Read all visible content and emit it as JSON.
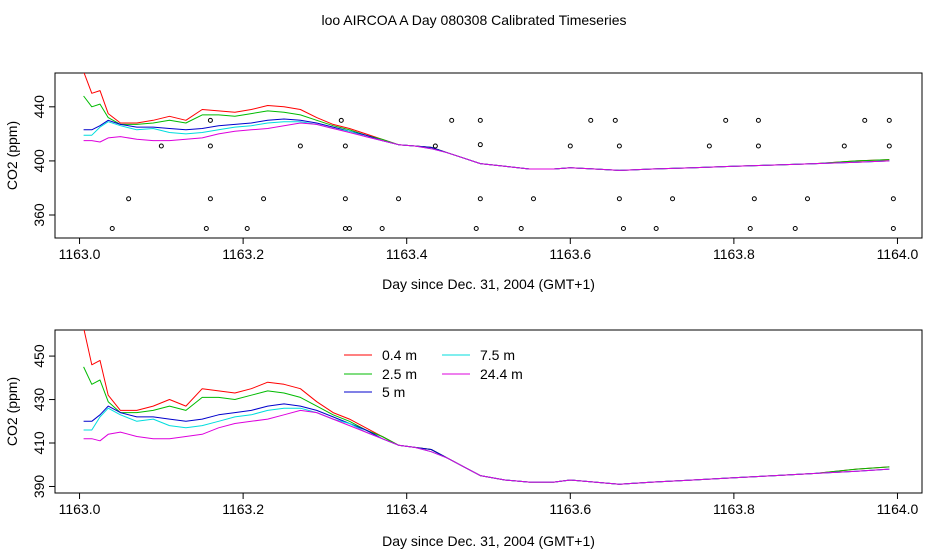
{
  "title": "loo AIRCOA A  Day 080308  Calibrated Timeseries",
  "colors": {
    "0.4 m": "#ff0000",
    "2.5 m": "#00bb00",
    "5 m": "#0000cc",
    "7.5 m": "#00dddd",
    "24.4 m": "#dd00dd",
    "markers": "#000000",
    "frame": "#000000"
  },
  "chart_data": [
    {
      "type": "line",
      "xlabel": "Day since Dec. 31, 2004 (GMT+1)",
      "ylabel": "CO2 (ppm)",
      "xlim": [
        1162.97,
        1164.03
      ],
      "ylim": [
        343,
        465
      ],
      "xticks": [
        1163.0,
        1163.2,
        1163.4,
        1163.6,
        1163.8,
        1164.0
      ],
      "xtick_labels": [
        "1163.0",
        "1163.2",
        "1163.4",
        "1163.6",
        "1163.8",
        "1164.0"
      ],
      "yticks": [
        360,
        400,
        440
      ],
      "ytick_labels": [
        "360",
        "400",
        "440"
      ],
      "legend": false,
      "series": [
        {
          "name": "0.4 m",
          "x": [
            1163.005,
            1163.015,
            1163.025,
            1163.035,
            1163.05,
            1163.07,
            1163.09,
            1163.11,
            1163.13,
            1163.15,
            1163.17,
            1163.19,
            1163.21,
            1163.23,
            1163.25,
            1163.27,
            1163.29,
            1163.31,
            1163.33,
            1163.35,
            1163.37,
            1163.39,
            1163.41,
            1163.43,
            1163.45,
            1163.47,
            1163.49,
            1163.52,
            1163.55,
            1163.58,
            1163.6,
            1163.63,
            1163.66,
            1163.7,
            1163.75,
            1163.8,
            1163.85,
            1163.9,
            1163.95,
            1163.99
          ],
          "y": [
            466,
            450,
            452,
            435,
            428,
            428,
            430,
            433,
            430,
            438,
            437,
            436,
            438,
            441,
            440,
            438,
            432,
            427,
            424,
            420,
            416,
            412,
            411,
            410,
            406,
            402,
            398,
            396,
            394,
            394,
            395,
            394,
            393,
            394,
            395,
            396,
            397,
            398,
            400,
            401
          ]
        },
        {
          "name": "2.5 m",
          "x": [
            1163.005,
            1163.015,
            1163.025,
            1163.035,
            1163.05,
            1163.07,
            1163.09,
            1163.11,
            1163.13,
            1163.15,
            1163.17,
            1163.19,
            1163.21,
            1163.23,
            1163.25,
            1163.27,
            1163.29,
            1163.31,
            1163.33,
            1163.35,
            1163.37,
            1163.39,
            1163.41,
            1163.43,
            1163.45,
            1163.47,
            1163.49,
            1163.52,
            1163.55,
            1163.58,
            1163.6,
            1163.63,
            1163.66,
            1163.7,
            1163.75,
            1163.8,
            1163.85,
            1163.9,
            1163.95,
            1163.99
          ],
          "y": [
            448,
            440,
            442,
            432,
            427,
            427,
            428,
            430,
            428,
            434,
            434,
            433,
            435,
            437,
            436,
            434,
            430,
            426,
            423,
            419,
            416,
            412,
            411,
            410,
            406,
            402,
            398,
            396,
            394,
            394,
            395,
            394,
            393,
            394,
            395,
            396,
            397,
            398,
            400,
            401
          ]
        },
        {
          "name": "5 m",
          "x": [
            1163.005,
            1163.015,
            1163.025,
            1163.035,
            1163.05,
            1163.07,
            1163.09,
            1163.11,
            1163.13,
            1163.15,
            1163.17,
            1163.19,
            1163.21,
            1163.23,
            1163.25,
            1163.27,
            1163.29,
            1163.31,
            1163.33,
            1163.35,
            1163.37,
            1163.39,
            1163.41,
            1163.43,
            1163.45,
            1163.47,
            1163.49,
            1163.52,
            1163.55,
            1163.58,
            1163.6,
            1163.63,
            1163.66,
            1163.7,
            1163.75,
            1163.8,
            1163.85,
            1163.9,
            1163.95,
            1163.99
          ],
          "y": [
            423,
            423,
            426,
            430,
            427,
            425,
            425,
            424,
            423,
            424,
            426,
            427,
            428,
            430,
            431,
            430,
            428,
            425,
            422,
            419,
            415,
            412,
            411,
            410,
            406,
            402,
            398,
            396,
            394,
            394,
            395,
            394,
            393,
            394,
            395,
            396,
            397,
            398,
            399,
            400
          ]
        },
        {
          "name": "7.5 m",
          "x": [
            1163.005,
            1163.015,
            1163.025,
            1163.035,
            1163.05,
            1163.07,
            1163.09,
            1163.11,
            1163.13,
            1163.15,
            1163.17,
            1163.19,
            1163.21,
            1163.23,
            1163.25,
            1163.27,
            1163.29,
            1163.31,
            1163.33,
            1163.35,
            1163.37,
            1163.39,
            1163.41,
            1163.43,
            1163.45,
            1163.47,
            1163.49,
            1163.52,
            1163.55,
            1163.58,
            1163.6,
            1163.63,
            1163.66,
            1163.7,
            1163.75,
            1163.8,
            1163.85,
            1163.9,
            1163.95,
            1163.99
          ],
          "y": [
            419,
            419,
            425,
            429,
            426,
            423,
            424,
            421,
            420,
            421,
            423,
            425,
            426,
            428,
            429,
            429,
            427,
            424,
            422,
            418,
            415,
            412,
            411,
            409,
            406,
            402,
            398,
            396,
            394,
            394,
            395,
            394,
            393,
            394,
            395,
            396,
            397,
            398,
            399,
            400
          ]
        },
        {
          "name": "24.4 m",
          "x": [
            1163.005,
            1163.015,
            1163.025,
            1163.035,
            1163.05,
            1163.07,
            1163.09,
            1163.11,
            1163.13,
            1163.15,
            1163.17,
            1163.19,
            1163.21,
            1163.23,
            1163.25,
            1163.27,
            1163.29,
            1163.31,
            1163.33,
            1163.35,
            1163.37,
            1163.39,
            1163.41,
            1163.43,
            1163.45,
            1163.47,
            1163.49,
            1163.52,
            1163.55,
            1163.58,
            1163.6,
            1163.63,
            1163.66,
            1163.7,
            1163.75,
            1163.8,
            1163.85,
            1163.9,
            1163.95,
            1163.99
          ],
          "y": [
            415,
            415,
            414,
            417,
            418,
            416,
            415,
            415,
            416,
            417,
            420,
            422,
            423,
            424,
            426,
            428,
            427,
            424,
            421,
            418,
            415,
            412,
            411,
            409,
            406,
            402,
            398,
            396,
            394,
            394,
            395,
            394,
            393,
            394,
            395,
            396,
            397,
            398,
            399,
            400
          ]
        },
        {
          "name": "markers",
          "mode": "points",
          "x": [
            1163.04,
            1163.06,
            1163.1,
            1163.155,
            1163.16,
            1163.16,
            1163.16,
            1163.205,
            1163.225,
            1163.27,
            1163.32,
            1163.325,
            1163.325,
            1163.325,
            1163.33,
            1163.37,
            1163.39,
            1163.435,
            1163.455,
            1163.485,
            1163.49,
            1163.49,
            1163.49,
            1163.54,
            1163.555,
            1163.6,
            1163.625,
            1163.655,
            1163.66,
            1163.66,
            1163.665,
            1163.705,
            1163.725,
            1163.77,
            1163.79,
            1163.82,
            1163.825,
            1163.83,
            1163.83,
            1163.875,
            1163.89,
            1163.935,
            1163.96,
            1163.99,
            1163.99,
            1163.995,
            1163.995
          ],
          "y": [
            350,
            372,
            411,
            350,
            372,
            411,
            430,
            350,
            372,
            411,
            430,
            411,
            372,
            350,
            350,
            350,
            372,
            411,
            430,
            350,
            372,
            412,
            430,
            350,
            372,
            411,
            430,
            430,
            411,
            372,
            350,
            350,
            372,
            411,
            430,
            350,
            372,
            411,
            430,
            350,
            372,
            411,
            430,
            430,
            411,
            372,
            350
          ]
        }
      ]
    },
    {
      "type": "line",
      "xlabel": "Day since Dec. 31, 2004 (GMT+1)",
      "ylabel": "CO2 (ppm)",
      "xlim": [
        1162.97,
        1164.03
      ],
      "ylim": [
        387,
        462
      ],
      "xticks": [
        1163.0,
        1163.2,
        1163.4,
        1163.6,
        1163.8,
        1164.0
      ],
      "xtick_labels": [
        "1163.0",
        "1163.2",
        "1163.4",
        "1163.6",
        "1163.8",
        "1164.0"
      ],
      "yticks": [
        390,
        410,
        430,
        450
      ],
      "ytick_labels": [
        "390",
        "410",
        "430",
        "450"
      ],
      "legend": "top-center",
      "series": [
        {
          "name": "0.4 m",
          "x": [
            1163.005,
            1163.015,
            1163.025,
            1163.035,
            1163.05,
            1163.07,
            1163.09,
            1163.11,
            1163.13,
            1163.15,
            1163.17,
            1163.19,
            1163.21,
            1163.23,
            1163.25,
            1163.27,
            1163.29,
            1163.31,
            1163.33,
            1163.35,
            1163.37,
            1163.39,
            1163.41,
            1163.43,
            1163.45,
            1163.47,
            1163.49,
            1163.52,
            1163.55,
            1163.58,
            1163.6,
            1163.63,
            1163.66,
            1163.7,
            1163.75,
            1163.8,
            1163.85,
            1163.9,
            1163.95,
            1163.99
          ],
          "y": [
            463,
            446,
            448,
            432,
            425,
            425,
            427,
            430,
            427,
            435,
            434,
            433,
            435,
            438,
            437,
            435,
            429,
            424,
            421,
            417,
            413,
            409,
            408,
            407,
            403,
            399,
            395,
            393,
            392,
            392,
            393,
            392,
            391,
            392,
            393,
            394,
            395,
            396,
            398,
            399
          ]
        },
        {
          "name": "2.5 m",
          "x": [
            1163.005,
            1163.015,
            1163.025,
            1163.035,
            1163.05,
            1163.07,
            1163.09,
            1163.11,
            1163.13,
            1163.15,
            1163.17,
            1163.19,
            1163.21,
            1163.23,
            1163.25,
            1163.27,
            1163.29,
            1163.31,
            1163.33,
            1163.35,
            1163.37,
            1163.39,
            1163.41,
            1163.43,
            1163.45,
            1163.47,
            1163.49,
            1163.52,
            1163.55,
            1163.58,
            1163.6,
            1163.63,
            1163.66,
            1163.7,
            1163.75,
            1163.8,
            1163.85,
            1163.9,
            1163.95,
            1163.99
          ],
          "y": [
            445,
            437,
            439,
            429,
            424,
            424,
            425,
            427,
            425,
            431,
            431,
            430,
            432,
            434,
            433,
            431,
            427,
            423,
            420,
            416,
            413,
            409,
            408,
            407,
            403,
            399,
            395,
            393,
            392,
            392,
            393,
            392,
            391,
            392,
            393,
            394,
            395,
            396,
            398,
            399
          ]
        },
        {
          "name": "5 m",
          "x": [
            1163.005,
            1163.015,
            1163.025,
            1163.035,
            1163.05,
            1163.07,
            1163.09,
            1163.11,
            1163.13,
            1163.15,
            1163.17,
            1163.19,
            1163.21,
            1163.23,
            1163.25,
            1163.27,
            1163.29,
            1163.31,
            1163.33,
            1163.35,
            1163.37,
            1163.39,
            1163.41,
            1163.43,
            1163.45,
            1163.47,
            1163.49,
            1163.52,
            1163.55,
            1163.58,
            1163.6,
            1163.63,
            1163.66,
            1163.7,
            1163.75,
            1163.8,
            1163.85,
            1163.9,
            1163.95,
            1163.99
          ],
          "y": [
            420,
            420,
            423,
            427,
            424,
            422,
            422,
            421,
            420,
            421,
            423,
            424,
            425,
            427,
            428,
            427,
            425,
            422,
            419,
            416,
            412,
            409,
            408,
            407,
            403,
            399,
            395,
            393,
            392,
            392,
            393,
            392,
            391,
            392,
            393,
            394,
            395,
            396,
            397,
            398
          ]
        },
        {
          "name": "7.5 m",
          "x": [
            1163.005,
            1163.015,
            1163.025,
            1163.035,
            1163.05,
            1163.07,
            1163.09,
            1163.11,
            1163.13,
            1163.15,
            1163.17,
            1163.19,
            1163.21,
            1163.23,
            1163.25,
            1163.27,
            1163.29,
            1163.31,
            1163.33,
            1163.35,
            1163.37,
            1163.39,
            1163.41,
            1163.43,
            1163.45,
            1163.47,
            1163.49,
            1163.52,
            1163.55,
            1163.58,
            1163.6,
            1163.63,
            1163.66,
            1163.7,
            1163.75,
            1163.8,
            1163.85,
            1163.9,
            1163.95,
            1163.99
          ],
          "y": [
            416,
            416,
            422,
            426,
            423,
            420,
            421,
            418,
            417,
            418,
            420,
            422,
            423,
            425,
            426,
            426,
            424,
            421,
            419,
            415,
            412,
            409,
            408,
            406,
            403,
            399,
            395,
            393,
            392,
            392,
            393,
            392,
            391,
            392,
            393,
            394,
            395,
            396,
            397,
            398
          ]
        },
        {
          "name": "24.4 m",
          "x": [
            1163.005,
            1163.015,
            1163.025,
            1163.035,
            1163.05,
            1163.07,
            1163.09,
            1163.11,
            1163.13,
            1163.15,
            1163.17,
            1163.19,
            1163.21,
            1163.23,
            1163.25,
            1163.27,
            1163.29,
            1163.31,
            1163.33,
            1163.35,
            1163.37,
            1163.39,
            1163.41,
            1163.43,
            1163.45,
            1163.47,
            1163.49,
            1163.52,
            1163.55,
            1163.58,
            1163.6,
            1163.63,
            1163.66,
            1163.7,
            1163.75,
            1163.8,
            1163.85,
            1163.9,
            1163.95,
            1163.99
          ],
          "y": [
            412,
            412,
            411,
            414,
            415,
            413,
            412,
            412,
            413,
            414,
            417,
            419,
            420,
            421,
            423,
            425,
            424,
            421,
            418,
            415,
            412,
            409,
            408,
            406,
            403,
            399,
            395,
            393,
            392,
            392,
            393,
            392,
            391,
            392,
            393,
            394,
            395,
            396,
            397,
            398
          ]
        }
      ]
    }
  ]
}
